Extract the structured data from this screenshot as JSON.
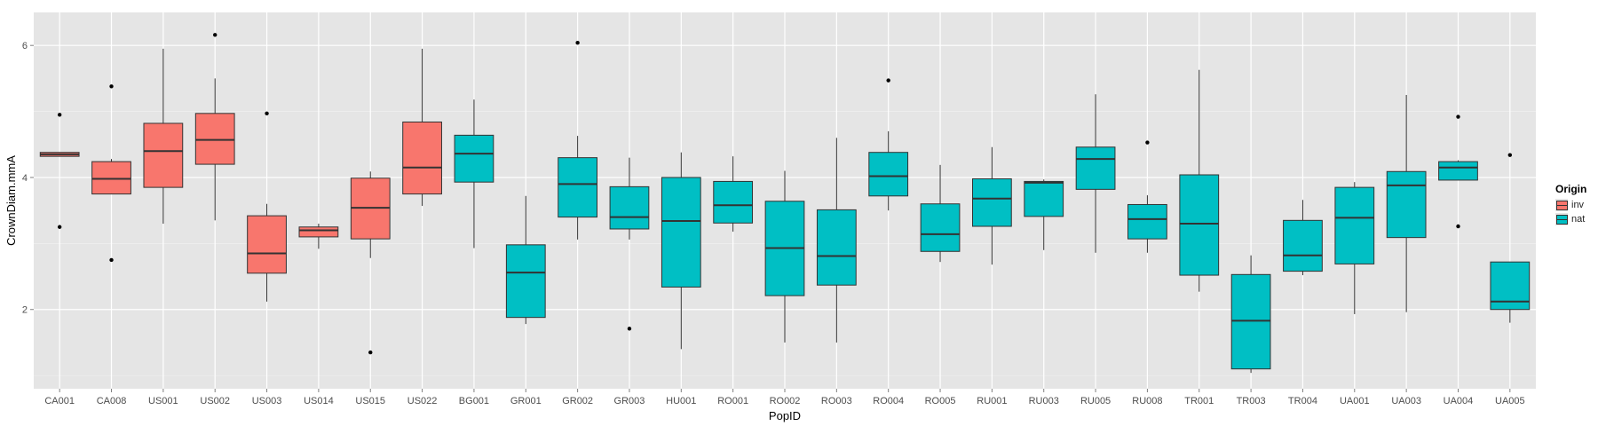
{
  "chart_data": {
    "type": "boxplot",
    "xlabel": "PopID",
    "ylabel": "CrownDiam.mmA",
    "ylim": [
      0.8,
      6.5
    ],
    "yticks": [
      2,
      4,
      6
    ],
    "grid": true,
    "legend": {
      "title": "Origin",
      "placement": "right"
    },
    "series": [
      {
        "name": "inv",
        "color": "#f8766d"
      },
      {
        "name": "nat",
        "color": "#00bfc4"
      }
    ],
    "categories": [
      "CA001",
      "CA008",
      "US001",
      "US002",
      "US003",
      "US014",
      "US015",
      "US022",
      "BG001",
      "GR001",
      "GR002",
      "GR003",
      "HU001",
      "RO001",
      "RO002",
      "RO003",
      "RO004",
      "RO005",
      "RU001",
      "RU003",
      "RU005",
      "RU008",
      "TR001",
      "TR003",
      "TR004",
      "UA001",
      "UA003",
      "UA004",
      "UA005"
    ],
    "boxes": [
      {
        "id": "CA001",
        "origin": "inv",
        "lower": 4.32,
        "q1": 4.32,
        "median": 4.35,
        "q3": 4.38,
        "upper": 4.38,
        "outliers": [
          4.95,
          3.25
        ]
      },
      {
        "id": "CA008",
        "origin": "inv",
        "lower": 3.75,
        "q1": 3.75,
        "median": 3.98,
        "q3": 4.24,
        "upper": 4.28,
        "outliers": [
          5.38,
          2.75
        ]
      },
      {
        "id": "US001",
        "origin": "inv",
        "lower": 3.3,
        "q1": 3.85,
        "median": 4.4,
        "q3": 4.82,
        "upper": 5.95,
        "outliers": []
      },
      {
        "id": "US002",
        "origin": "inv",
        "lower": 3.35,
        "q1": 4.2,
        "median": 4.57,
        "q3": 4.97,
        "upper": 5.5,
        "outliers": [
          6.16
        ]
      },
      {
        "id": "US003",
        "origin": "inv",
        "lower": 2.12,
        "q1": 2.55,
        "median": 2.85,
        "q3": 3.42,
        "upper": 3.6,
        "outliers": [
          4.97
        ]
      },
      {
        "id": "US014",
        "origin": "inv",
        "lower": 2.92,
        "q1": 3.1,
        "median": 3.2,
        "q3": 3.25,
        "upper": 3.3,
        "outliers": []
      },
      {
        "id": "US015",
        "origin": "inv",
        "lower": 2.78,
        "q1": 3.07,
        "median": 3.54,
        "q3": 3.99,
        "upper": 4.09,
        "outliers": [
          1.35
        ]
      },
      {
        "id": "US022",
        "origin": "inv",
        "lower": 3.57,
        "q1": 3.75,
        "median": 4.15,
        "q3": 4.84,
        "upper": 5.95,
        "outliers": []
      },
      {
        "id": "BG001",
        "origin": "nat",
        "lower": 2.93,
        "q1": 3.93,
        "median": 4.36,
        "q3": 4.64,
        "upper": 5.18,
        "outliers": []
      },
      {
        "id": "GR001",
        "origin": "nat",
        "lower": 1.78,
        "q1": 1.88,
        "median": 2.56,
        "q3": 2.98,
        "upper": 3.72,
        "outliers": []
      },
      {
        "id": "GR002",
        "origin": "nat",
        "lower": 3.06,
        "q1": 3.4,
        "median": 3.9,
        "q3": 4.3,
        "upper": 4.63,
        "outliers": [
          6.04
        ]
      },
      {
        "id": "GR003",
        "origin": "nat",
        "lower": 3.06,
        "q1": 3.22,
        "median": 3.4,
        "q3": 3.86,
        "upper": 4.3,
        "outliers": [
          1.71
        ]
      },
      {
        "id": "HU001",
        "origin": "nat",
        "lower": 1.4,
        "q1": 2.34,
        "median": 3.34,
        "q3": 4.0,
        "upper": 4.38,
        "outliers": []
      },
      {
        "id": "RO001",
        "origin": "nat",
        "lower": 3.18,
        "q1": 3.31,
        "median": 3.58,
        "q3": 3.94,
        "upper": 4.32,
        "outliers": []
      },
      {
        "id": "RO002",
        "origin": "nat",
        "lower": 1.5,
        "q1": 2.21,
        "median": 2.93,
        "q3": 3.64,
        "upper": 4.1,
        "outliers": []
      },
      {
        "id": "RO003",
        "origin": "nat",
        "lower": 1.5,
        "q1": 2.37,
        "median": 2.81,
        "q3": 3.51,
        "upper": 4.6,
        "outliers": []
      },
      {
        "id": "RO004",
        "origin": "nat",
        "lower": 3.5,
        "q1": 3.72,
        "median": 4.02,
        "q3": 4.38,
        "upper": 4.7,
        "outliers": [
          5.47
        ]
      },
      {
        "id": "RO005",
        "origin": "nat",
        "lower": 2.72,
        "q1": 2.88,
        "median": 3.14,
        "q3": 3.6,
        "upper": 4.19,
        "outliers": []
      },
      {
        "id": "RU001",
        "origin": "nat",
        "lower": 2.68,
        "q1": 3.26,
        "median": 3.68,
        "q3": 3.98,
        "upper": 4.46,
        "outliers": []
      },
      {
        "id": "RU003",
        "origin": "nat",
        "lower": 2.9,
        "q1": 3.41,
        "median": 3.92,
        "q3": 3.94,
        "upper": 3.97,
        "outliers": []
      },
      {
        "id": "RU005",
        "origin": "nat",
        "lower": 2.86,
        "q1": 3.82,
        "median": 4.28,
        "q3": 4.46,
        "upper": 5.26,
        "outliers": []
      },
      {
        "id": "RU008",
        "origin": "nat",
        "lower": 2.86,
        "q1": 3.07,
        "median": 3.37,
        "q3": 3.59,
        "upper": 3.73,
        "outliers": [
          4.53
        ]
      },
      {
        "id": "TR001",
        "origin": "nat",
        "lower": 2.27,
        "q1": 2.52,
        "median": 3.3,
        "q3": 4.04,
        "upper": 5.63,
        "outliers": []
      },
      {
        "id": "TR003",
        "origin": "nat",
        "lower": 1.04,
        "q1": 1.1,
        "median": 1.83,
        "q3": 2.53,
        "upper": 2.82,
        "outliers": []
      },
      {
        "id": "TR004",
        "origin": "nat",
        "lower": 2.52,
        "q1": 2.58,
        "median": 2.82,
        "q3": 3.35,
        "upper": 3.66,
        "outliers": []
      },
      {
        "id": "UA001",
        "origin": "nat",
        "lower": 1.93,
        "q1": 2.69,
        "median": 3.39,
        "q3": 3.85,
        "upper": 3.93,
        "outliers": []
      },
      {
        "id": "UA003",
        "origin": "nat",
        "lower": 1.96,
        "q1": 3.09,
        "median": 3.88,
        "q3": 4.09,
        "upper": 5.25,
        "outliers": []
      },
      {
        "id": "UA004",
        "origin": "nat",
        "lower": 3.96,
        "q1": 3.96,
        "median": 4.15,
        "q3": 4.24,
        "upper": 4.26,
        "outliers": [
          4.92,
          3.26
        ]
      },
      {
        "id": "UA005",
        "origin": "nat",
        "lower": 1.8,
        "q1": 2.0,
        "median": 2.12,
        "q3": 2.72,
        "upper": 2.72,
        "outliers": [
          4.34
        ]
      }
    ]
  }
}
